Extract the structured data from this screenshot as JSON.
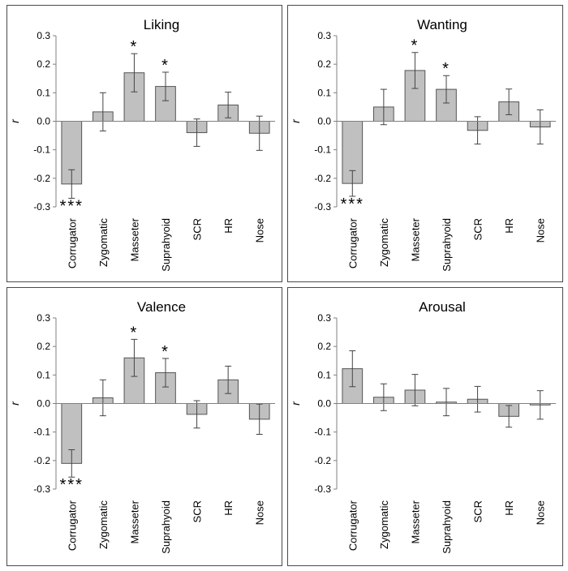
{
  "chart_data": [
    {
      "type": "bar",
      "title": "Liking",
      "ylabel": "r",
      "ylim": [
        -0.3,
        0.3
      ],
      "yticks": [
        "0.3",
        "0.2",
        "0.1",
        "0.0",
        "-0.1",
        "-0.2",
        "-0.3"
      ],
      "categories": [
        "Corrugator",
        "Zygomatic",
        "Masseter",
        "Suprahyoid",
        "SCR",
        "HR",
        "Nose"
      ],
      "values": [
        -0.22,
        0.033,
        0.17,
        0.122,
        -0.04,
        0.057,
        -0.042
      ],
      "error": [
        0.05,
        0.067,
        0.067,
        0.05,
        0.048,
        0.045,
        0.06
      ],
      "significance": [
        "***",
        "",
        "*",
        "*",
        "",
        "",
        ""
      ]
    },
    {
      "type": "bar",
      "title": "Wanting",
      "ylabel": "r",
      "ylim": [
        -0.3,
        0.3
      ],
      "yticks": [
        "0.3",
        "0.2",
        "0.1",
        "0.0",
        "-0.1",
        "-0.2",
        "-0.3"
      ],
      "categories": [
        "Corrugator",
        "Zygomatic",
        "Masseter",
        "Suprahyoid",
        "SCR",
        "HR",
        "Nose"
      ],
      "values": [
        -0.218,
        0.05,
        0.178,
        0.112,
        -0.032,
        0.068,
        -0.02
      ],
      "error": [
        0.045,
        0.062,
        0.063,
        0.048,
        0.048,
        0.045,
        0.06
      ],
      "significance": [
        "***",
        "",
        "*",
        "*",
        "",
        "",
        ""
      ]
    },
    {
      "type": "bar",
      "title": "Valence",
      "ylabel": "r",
      "ylim": [
        -0.3,
        0.3
      ],
      "yticks": [
        "0.3",
        "0.2",
        "0.1",
        "0.0",
        "-0.1",
        "-0.2",
        "-0.3"
      ],
      "categories": [
        "Corrugator",
        "Zygomatic",
        "Masseter",
        "Suprahyoid",
        "SCR",
        "HR",
        "Nose"
      ],
      "values": [
        -0.21,
        0.02,
        0.16,
        0.108,
        -0.038,
        0.083,
        -0.055
      ],
      "error": [
        0.048,
        0.063,
        0.065,
        0.05,
        0.048,
        0.048,
        0.053
      ],
      "significance": [
        "***",
        "",
        "*",
        "*",
        "",
        "",
        ""
      ]
    },
    {
      "type": "bar",
      "title": "Arousal",
      "ylabel": "r",
      "ylim": [
        -0.3,
        0.3
      ],
      "yticks": [
        "0.3",
        "0.2",
        "0.1",
        "0.0",
        "-0.1",
        "-0.2",
        "-0.3"
      ],
      "categories": [
        "Corrugator",
        "Zygomatic",
        "Masseter",
        "Suprahyoid",
        "SCR",
        "HR",
        "Nose"
      ],
      "values": [
        0.122,
        0.022,
        0.047,
        0.005,
        0.015,
        -0.045,
        -0.005
      ],
      "error": [
        0.063,
        0.047,
        0.055,
        0.048,
        0.045,
        0.038,
        0.05
      ],
      "significance": [
        "",
        "",
        "",
        "",
        "",
        "",
        ""
      ]
    }
  ],
  "colors": {
    "bar_fill": "#c0c0c0",
    "bar_stroke": "#555555",
    "error_bar": "#444444",
    "axis": "#808080"
  }
}
